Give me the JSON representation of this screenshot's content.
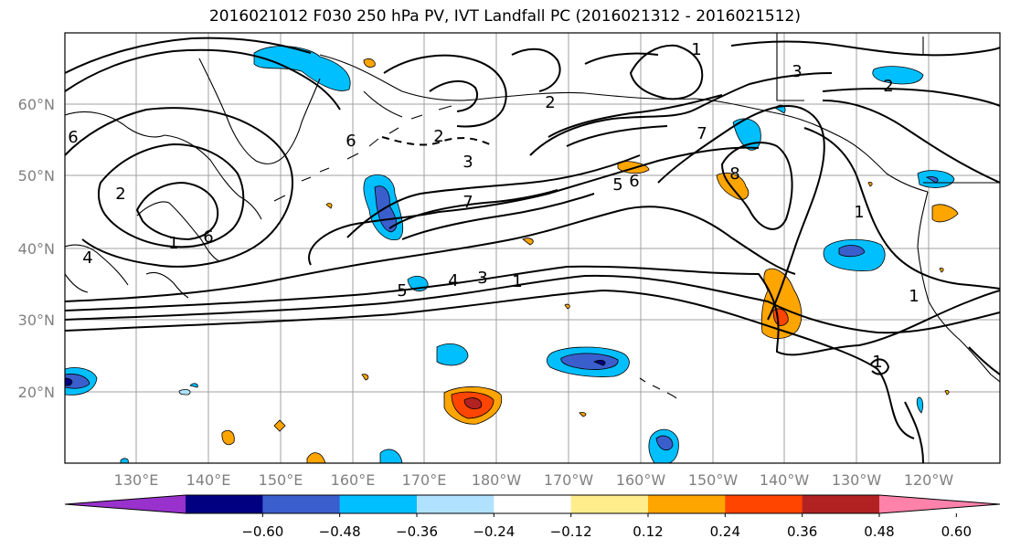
{
  "title": "2016021012 F030 250 hPa PV, IVT Landfall PC (2016021312 - 2016021512)",
  "map": {
    "lat_labels": [
      "60°N",
      "50°N",
      "40°N",
      "30°N",
      "20°N"
    ],
    "lon_labels": [
      "130°E",
      "140°E",
      "150°E",
      "160°E",
      "170°E",
      "180°W",
      "170°W",
      "160°W",
      "150°W",
      "140°W",
      "130°W",
      "120°W"
    ],
    "grid": true,
    "label_color": "#808080",
    "contour_labels": [
      "2",
      "3",
      "7",
      "1",
      "1",
      "4",
      "5",
      "3",
      "1",
      "6",
      "5",
      "6",
      "7",
      "3",
      "2",
      "1",
      "6",
      "8",
      "1",
      "2",
      "6",
      "1",
      "2",
      "4"
    ]
  },
  "colorbar": {
    "tick_labels": [
      "−0.60",
      "−0.48",
      "−0.36",
      "−0.24",
      "−0.12",
      "0.12",
      "0.24",
      "0.36",
      "0.48",
      "0.60"
    ],
    "colors": [
      "#9932cc",
      "#000080",
      "#3a5fcd",
      "#00bfff",
      "#b0e2ff",
      "#ffffff",
      "#ffec8b",
      "#ffa500",
      "#ff4500",
      "#b22222",
      "#ff82ab"
    ],
    "extend": "both"
  }
}
